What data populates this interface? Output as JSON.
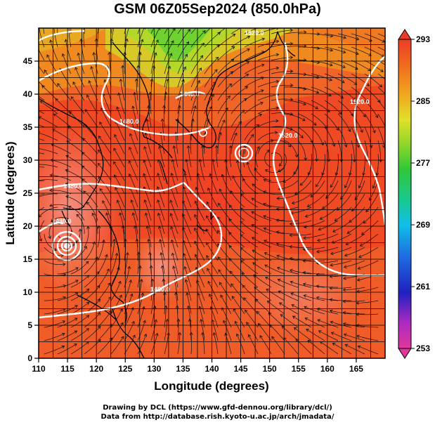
{
  "title": "GSM 06Z05Sep2024 (850.0hPa)",
  "credits": {
    "line1": "Drawing by DCL (https://www.gfd-dennou.org/library/dcl/)",
    "line2": "Data from http://database.rish.kyoto-u.ac.jp/arch/jmadata/"
  },
  "map": {
    "xlabel": "Longitude (degrees)",
    "ylabel": "Latitude  (degrees)",
    "lon_range": [
      110,
      170
    ],
    "lat_range": [
      0,
      50
    ],
    "lon_ticks": [
      "110",
      "115",
      "120",
      "125",
      "130",
      "135",
      "140",
      "145",
      "150",
      "155",
      "160",
      "165"
    ],
    "lat_ticks": [
      "0",
      "5",
      "10",
      "15",
      "20",
      "25",
      "30",
      "35",
      "40",
      "45"
    ],
    "grid": true,
    "shaded_field": "temperature",
    "contour_labels": [
      "1440.0",
      "1480.0",
      "1480.0",
      "1480.0",
      "1480.0",
      "1520.0",
      "1520.0",
      "1520.0"
    ],
    "typhoon_center": {
      "lon": 114.5,
      "lat": 19.2
    }
  },
  "colorbar": {
    "ticks": [
      "293",
      "285",
      "277",
      "269",
      "261",
      "253"
    ],
    "range": [
      253,
      293
    ],
    "colors": [
      "#e0379a",
      "#7a2ad0",
      "#1f25c8",
      "#1e6ee0",
      "#12b4e6",
      "#18c8a0",
      "#2ec84a",
      "#8ad62a",
      "#d6e02a",
      "#f0b01e",
      "#f07a1e",
      "#ec3c26"
    ]
  }
}
